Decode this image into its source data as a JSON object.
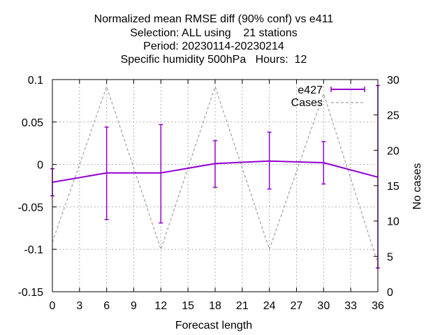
{
  "chart_data": {
    "type": "line",
    "title_lines": [
      "Normalized mean RMSE diff (90% conf) vs e411",
      "Selection: ALL using    21 stations",
      "Period: 20230114-20230214",
      "Specific humidity 500hPa   Hours:  12"
    ],
    "xlabel": "Forecast length",
    "ylabel": "",
    "y2label": "No cases",
    "xlim": [
      0,
      36
    ],
    "ylim": [
      -0.15,
      0.1
    ],
    "y2lim": [
      0,
      30
    ],
    "xticks": [
      "0",
      "3",
      "6",
      "9",
      "12",
      "15",
      "18",
      "21",
      "24",
      "27",
      "30",
      "33",
      "36"
    ],
    "yticks": [
      "-0.15",
      "-0.1",
      "-0.05",
      "0",
      "0.05",
      "0.1"
    ],
    "y2ticks": [
      "0",
      "5",
      "10",
      "15",
      "20",
      "25",
      "30"
    ],
    "grid": true,
    "legend_position": "top-right",
    "series": [
      {
        "name": "e427",
        "color": "#9400d3",
        "style": "line-errorbars",
        "x": [
          0,
          6,
          12,
          18,
          24,
          30,
          36
        ],
        "y": [
          -0.021,
          -0.01,
          -0.01,
          0.001,
          0.004,
          0.002,
          -0.015
        ],
        "err_low": [
          -0.037,
          -0.065,
          -0.069,
          -0.027,
          -0.029,
          -0.023,
          -0.122
        ],
        "err_high": [
          -0.005,
          0.044,
          0.047,
          0.028,
          0.038,
          0.027,
          0.093
        ]
      },
      {
        "name": "Cases",
        "color": "#a0a0a0",
        "style": "dashed",
        "axis": "y2",
        "x": [
          0,
          6,
          12,
          18,
          24,
          30,
          36
        ],
        "y": [
          7,
          29,
          6,
          29,
          6,
          28,
          4
        ]
      }
    ]
  }
}
